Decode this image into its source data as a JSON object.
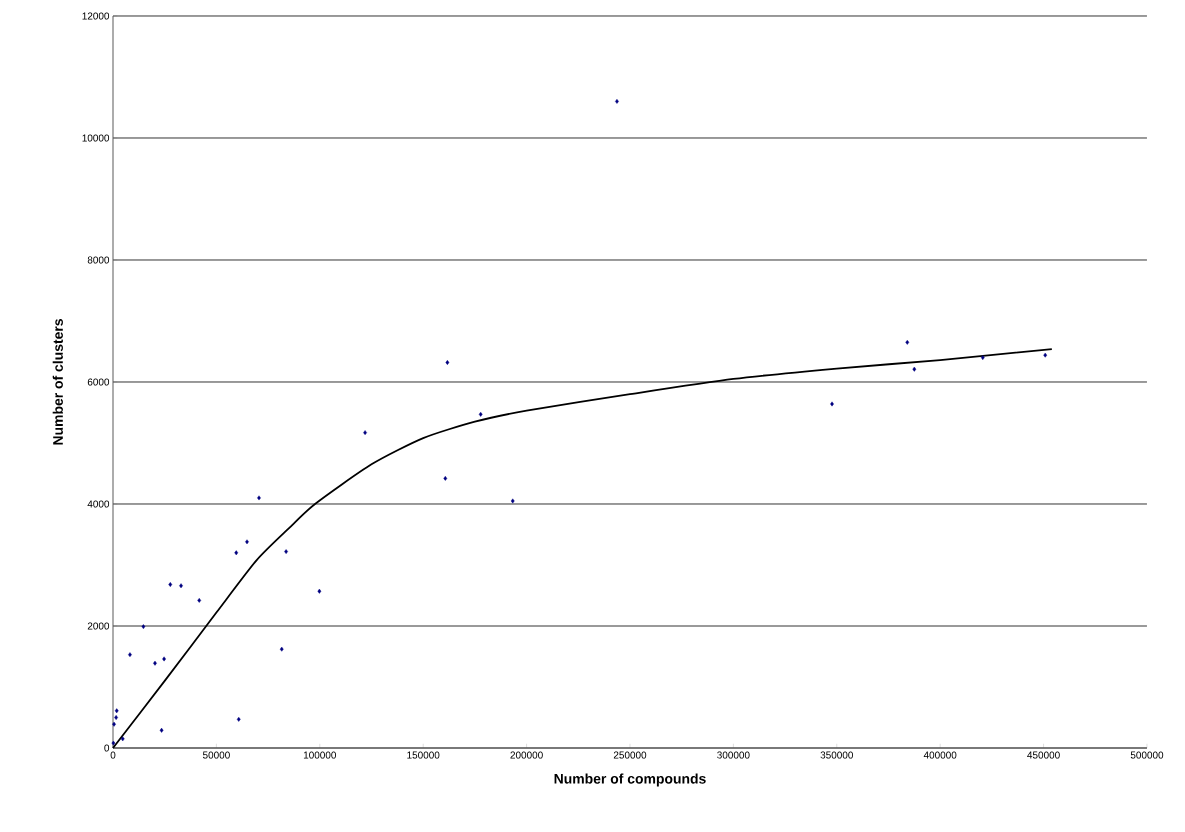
{
  "chart_data": {
    "type": "scatter",
    "xlabel": "Number of compounds",
    "ylabel": "Number of clusters",
    "xlim": [
      0,
      500000
    ],
    "xticks": [
      0,
      50000,
      100000,
      150000,
      200000,
      250000,
      300000,
      350000,
      400000,
      450000,
      500000
    ],
    "ylim": [
      0,
      12000
    ],
    "yticks": [
      0,
      2000,
      4000,
      6000,
      8000,
      10000,
      12000
    ],
    "grid": "y",
    "legend": false,
    "series": [
      {
        "color": "#000080",
        "marker": "diamond",
        "x": [
          200,
          500,
          1500,
          1800,
          4700,
          8200,
          14700,
          20300,
          23500,
          24700,
          27700,
          32900,
          41700,
          59600,
          60800,
          64800,
          70600,
          81600,
          83700,
          99800,
          121900,
          160700,
          161700,
          177800,
          193300,
          243700,
          347700,
          384100,
          387500,
          420600,
          450800
        ],
        "values": [
          80,
          390,
          500,
          610,
          150,
          1530,
          1990,
          1390,
          290,
          1460,
          2680,
          2660,
          2420,
          3200,
          470,
          3380,
          4100,
          1620,
          3220,
          2570,
          5170,
          4420,
          6320,
          5470,
          4050,
          10600,
          5640,
          6650,
          6210,
          6400,
          6440
        ]
      },
      {
        "type": "line",
        "color": "#000000",
        "marker": "none",
        "line_style": "solid",
        "x": [
          0,
          25000,
          50000,
          69500,
          85000,
          97700,
          125000,
          150000,
          175000,
          200000,
          250000,
          300000,
          350000,
          400000,
          454000
        ],
        "values": [
          0,
          1100,
          2220,
          3080,
          3600,
          4000,
          4650,
          5080,
          5350,
          5530,
          5800,
          6050,
          6220,
          6360,
          6540
        ]
      }
    ]
  }
}
